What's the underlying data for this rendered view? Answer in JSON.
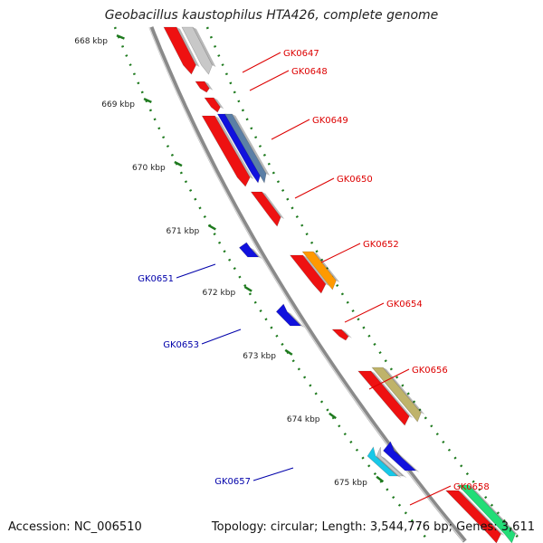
{
  "header": {
    "title": "Geobacillus kaustophilus HTA426, complete genome"
  },
  "footer": {
    "accession": "Accession: NC_006510",
    "summary": "Topology: circular; Length: 3,544,776 bp; Genes: 3,611"
  },
  "colors": {
    "backbone": "#8a8a8a",
    "tick": "#1e7a1e",
    "label_forward": "#dd0000",
    "label_reverse": "#0000aa",
    "gene_red": "#ee1111",
    "gene_blue": "#1111dd",
    "gene_orange": "#ff9900",
    "gene_khaki": "#bfb36a",
    "gene_gray": "#c8c8c8",
    "gene_steel": "#5b7fa6",
    "gene_cyan": "#18c8e8",
    "gene_green": "#22dd77"
  },
  "scale": {
    "ticks": [
      "668 kbp",
      "669 kbp",
      "670 kbp",
      "671 kbp",
      "672 kbp",
      "673 kbp",
      "674 kbp",
      "675 kbp"
    ]
  },
  "genes": [
    {
      "label": "GK0647",
      "strand": "forward",
      "color": "gene_red"
    },
    {
      "label": "GK0648",
      "strand": "forward",
      "color": "gene_red"
    },
    {
      "label": "GK0649",
      "strand": "forward",
      "color": "gene_red"
    },
    {
      "label": "GK0650",
      "strand": "forward",
      "color": "gene_red"
    },
    {
      "label": "GK0651",
      "strand": "reverse",
      "color": "gene_blue"
    },
    {
      "label": "GK0652",
      "strand": "forward",
      "color": "gene_red"
    },
    {
      "label": "GK0653",
      "strand": "reverse",
      "color": "gene_blue"
    },
    {
      "label": "GK0654",
      "strand": "forward",
      "color": "gene_red"
    },
    {
      "label": "GK0656",
      "strand": "forward",
      "color": "gene_red"
    },
    {
      "label": "GK0657",
      "strand": "reverse",
      "color": "gene_blue"
    },
    {
      "label": "GK0658",
      "strand": "forward",
      "color": "gene_red"
    }
  ]
}
